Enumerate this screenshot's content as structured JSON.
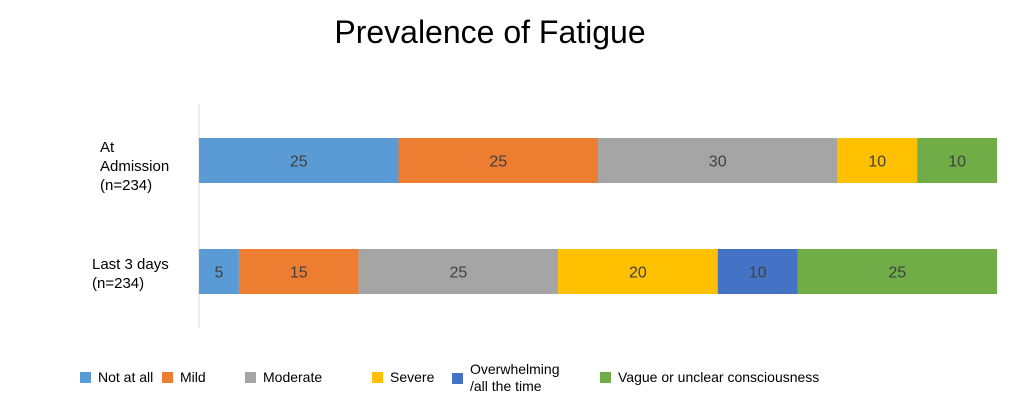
{
  "chart_data": {
    "type": "bar",
    "orientation": "horizontal",
    "stacked": true,
    "title": "Prevalence of Fatigue",
    "categories": [
      "At\nAdmission\n(n=234)",
      "Last 3 days\n (n=234)"
    ],
    "series": [
      {
        "name": "Not at all",
        "color": "#5B9BD5",
        "values": [
          25,
          5
        ]
      },
      {
        "name": "Mild",
        "color": "#ED7D31",
        "values": [
          25,
          15
        ]
      },
      {
        "name": "Moderate",
        "color": "#A5A5A5",
        "values": [
          30,
          25
        ]
      },
      {
        "name": "Severe",
        "color": "#FFC000",
        "values": [
          10,
          20
        ]
      },
      {
        "name": "Overwhelming\n/all the time",
        "color": "#4472C4",
        "values": [
          0,
          10
        ]
      },
      {
        "name": "Vague or unclear consciousness",
        "color": "#70AD47",
        "values": [
          10,
          25
        ]
      }
    ],
    "xlim": [
      0,
      100
    ],
    "grid": false,
    "legend_position": "bottom"
  }
}
